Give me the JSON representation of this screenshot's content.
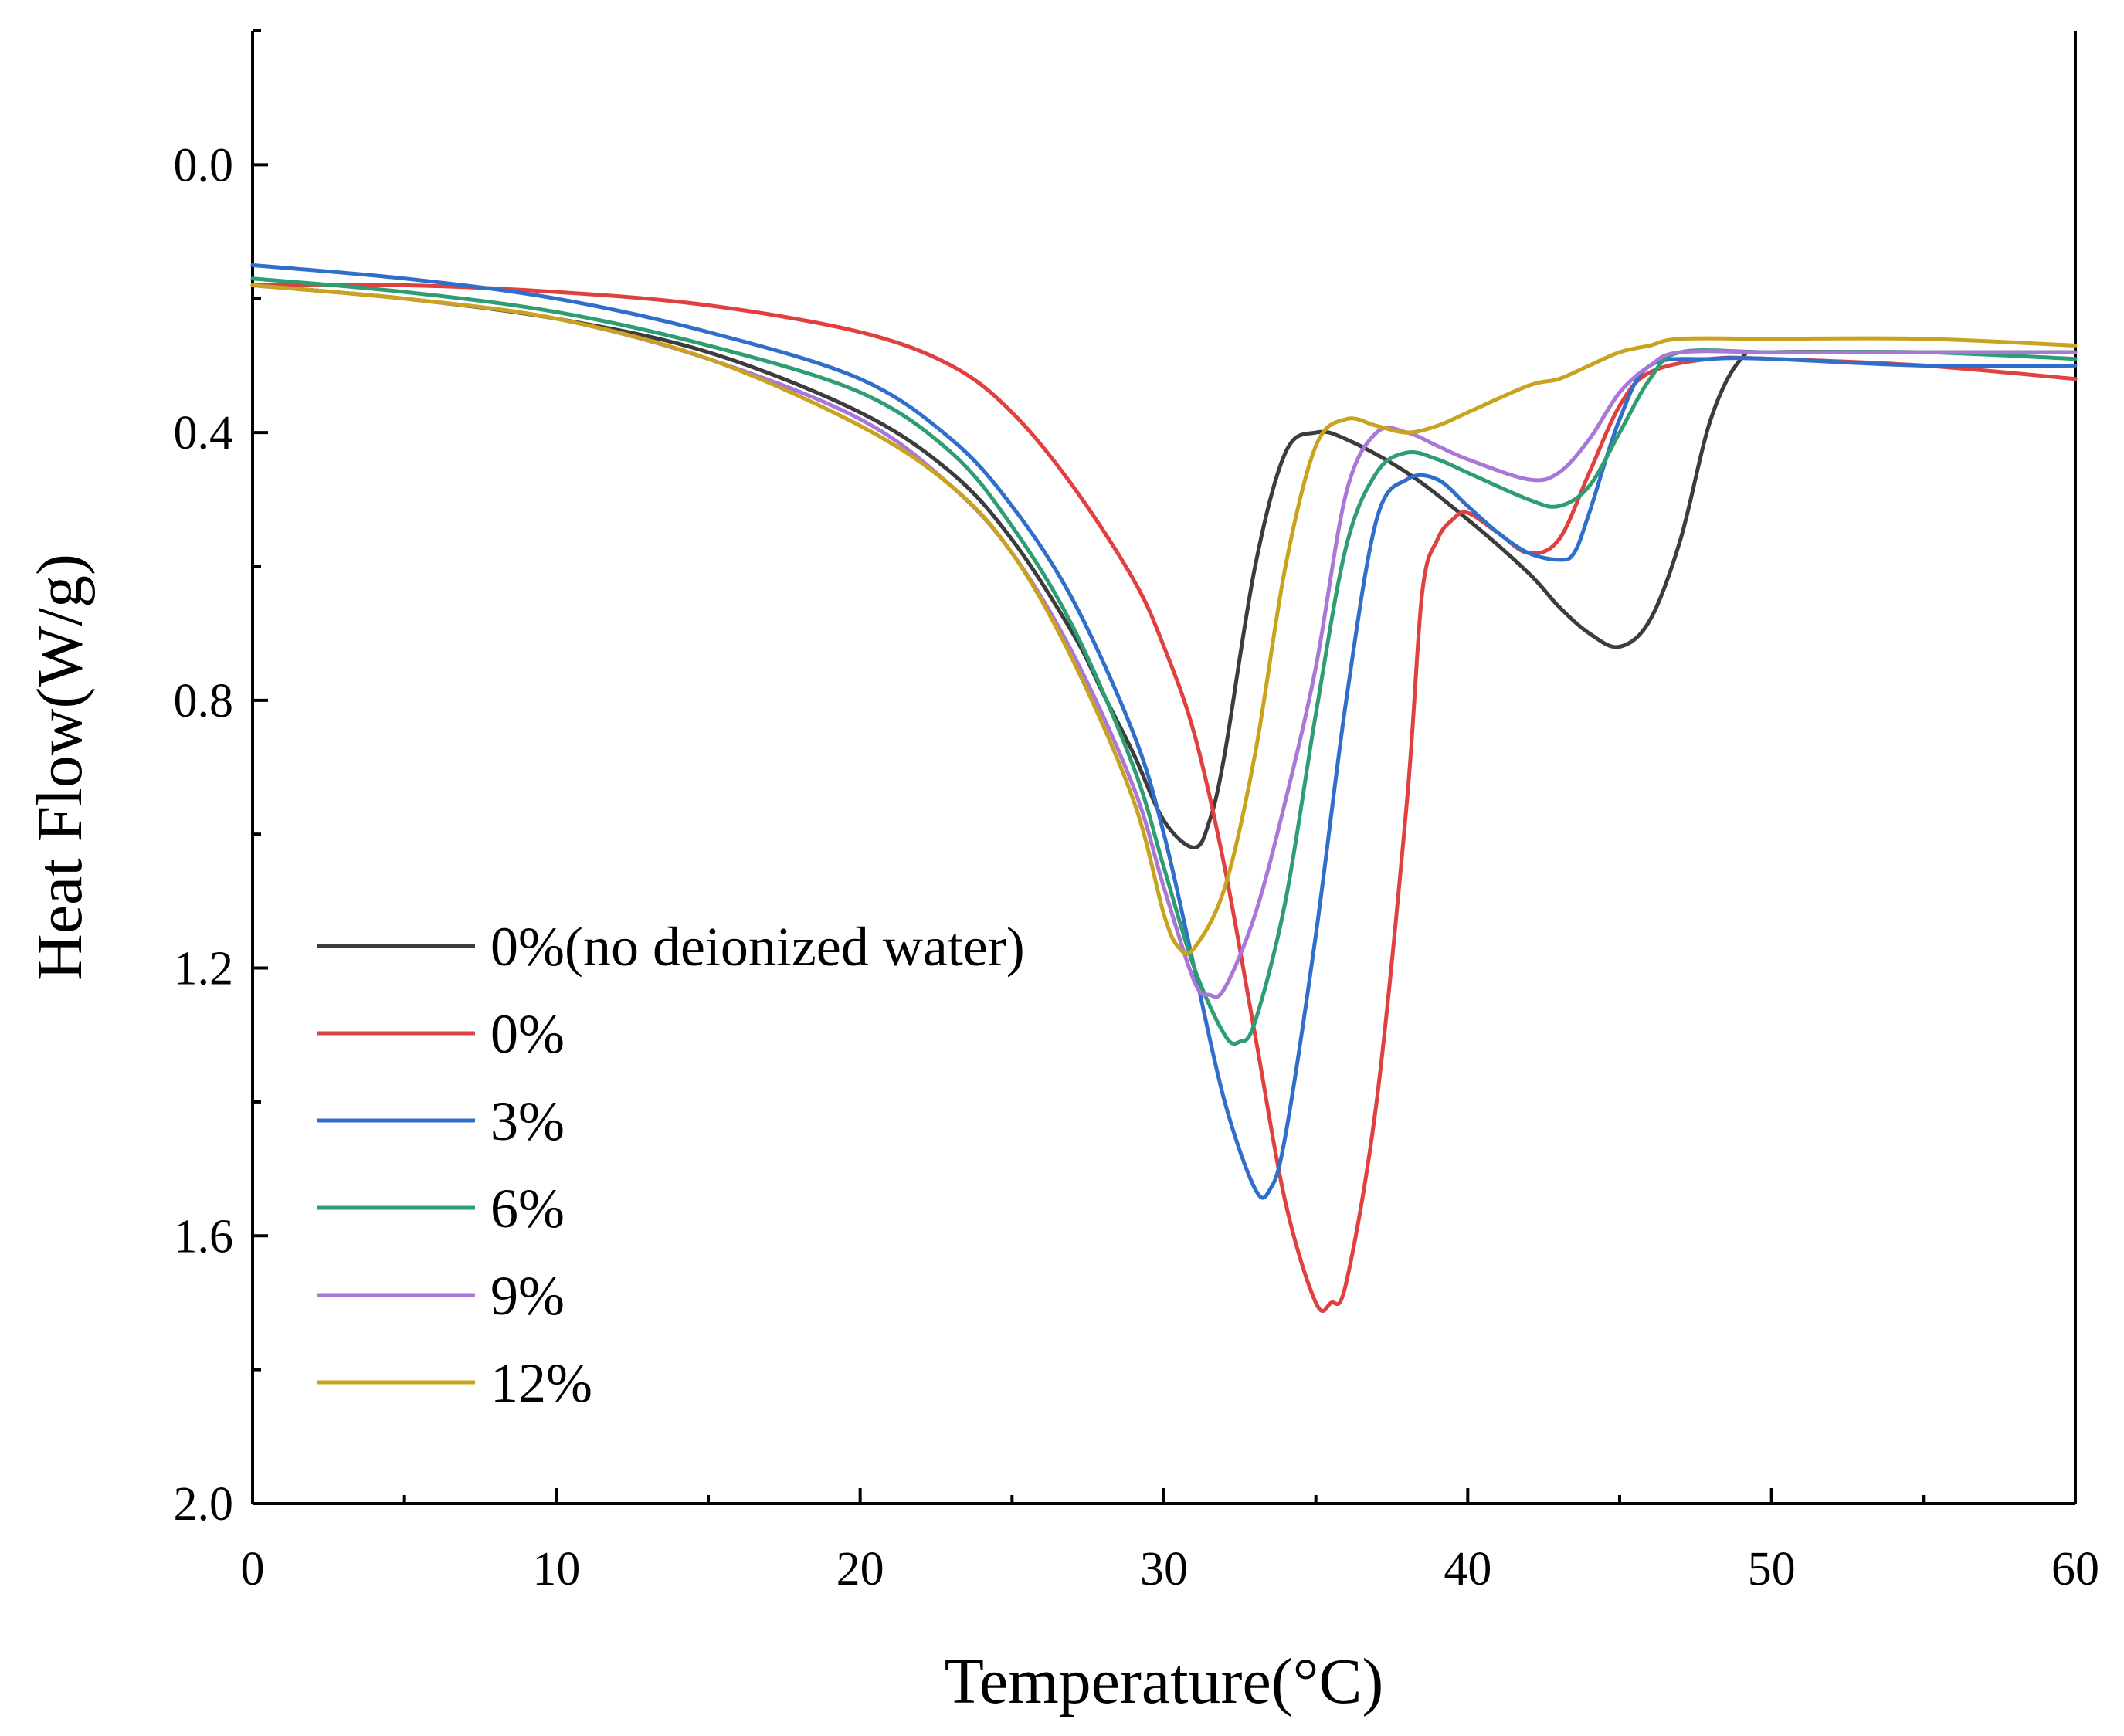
{
  "chart_data": {
    "type": "line",
    "title": "",
    "xlabel": "Temperature(°C)",
    "ylabel": "Heat Flow(W/g)",
    "xlim": [
      0,
      60
    ],
    "ylim": [
      -0.2,
      2.0
    ],
    "y_inverted": true,
    "x_ticks": [
      0,
      10,
      20,
      30,
      40,
      50,
      60
    ],
    "x_tick_labels": [
      "0",
      "10",
      "20",
      "30",
      "40",
      "50",
      "60"
    ],
    "y_ticks": [
      0.0,
      0.4,
      0.8,
      1.2,
      1.6,
      2.0
    ],
    "y_tick_labels": [
      "0.0",
      "0.4",
      "0.8",
      "1.2",
      "1.6",
      "2.0"
    ],
    "grid": false,
    "legend_position": "bottom-left",
    "series": [
      {
        "name": "0%(no deionized water)",
        "color": "#3c3c3c",
        "points": [
          [
            0,
            0.18
          ],
          [
            5,
            0.2
          ],
          [
            10,
            0.23
          ],
          [
            15,
            0.28
          ],
          [
            20,
            0.37
          ],
          [
            23,
            0.46
          ],
          [
            25,
            0.56
          ],
          [
            27,
            0.7
          ],
          [
            28,
            0.79
          ],
          [
            29,
            0.88
          ],
          [
            30,
            0.98
          ],
          [
            31,
            1.02
          ],
          [
            31.5,
            0.98
          ],
          [
            32,
            0.88
          ],
          [
            33,
            0.6
          ],
          [
            34,
            0.43
          ],
          [
            35,
            0.4
          ],
          [
            36,
            0.41
          ],
          [
            38,
            0.46
          ],
          [
            40,
            0.53
          ],
          [
            42,
            0.61
          ],
          [
            43,
            0.66
          ],
          [
            44,
            0.7
          ],
          [
            45,
            0.72
          ],
          [
            46,
            0.68
          ],
          [
            47,
            0.56
          ],
          [
            48,
            0.38
          ],
          [
            49,
            0.29
          ],
          [
            50,
            0.28
          ],
          [
            55,
            0.28
          ],
          [
            60,
            0.28
          ]
        ]
      },
      {
        "name": "0%",
        "color": "#e0403f",
        "points": [
          [
            0,
            0.18
          ],
          [
            5,
            0.18
          ],
          [
            10,
            0.19
          ],
          [
            15,
            0.21
          ],
          [
            20,
            0.25
          ],
          [
            23,
            0.3
          ],
          [
            25,
            0.37
          ],
          [
            27,
            0.48
          ],
          [
            29,
            0.62
          ],
          [
            30,
            0.72
          ],
          [
            31,
            0.85
          ],
          [
            32,
            1.05
          ],
          [
            33,
            1.3
          ],
          [
            34,
            1.55
          ],
          [
            35,
            1.7
          ],
          [
            35.5,
            1.7
          ],
          [
            36,
            1.67
          ],
          [
            37,
            1.4
          ],
          [
            38,
            0.95
          ],
          [
            38.5,
            0.64
          ],
          [
            39,
            0.56
          ],
          [
            39.5,
            0.53
          ],
          [
            40,
            0.52
          ],
          [
            41,
            0.55
          ],
          [
            42,
            0.58
          ],
          [
            43,
            0.56
          ],
          [
            44,
            0.46
          ],
          [
            45,
            0.36
          ],
          [
            46,
            0.31
          ],
          [
            48,
            0.29
          ],
          [
            50,
            0.29
          ],
          [
            55,
            0.3
          ],
          [
            60,
            0.32
          ]
        ]
      },
      {
        "name": "3%",
        "color": "#2f6ecb",
        "points": [
          [
            0,
            0.15
          ],
          [
            5,
            0.17
          ],
          [
            10,
            0.2
          ],
          [
            15,
            0.25
          ],
          [
            20,
            0.32
          ],
          [
            23,
            0.41
          ],
          [
            25,
            0.51
          ],
          [
            27,
            0.65
          ],
          [
            29,
            0.85
          ],
          [
            30,
            1.0
          ],
          [
            31,
            1.2
          ],
          [
            32,
            1.4
          ],
          [
            33,
            1.53
          ],
          [
            33.5,
            1.53
          ],
          [
            34,
            1.45
          ],
          [
            35,
            1.15
          ],
          [
            36,
            0.8
          ],
          [
            37,
            0.53
          ],
          [
            38,
            0.47
          ],
          [
            39,
            0.47
          ],
          [
            40,
            0.51
          ],
          [
            41,
            0.55
          ],
          [
            42,
            0.58
          ],
          [
            43,
            0.59
          ],
          [
            43.5,
            0.58
          ],
          [
            44,
            0.52
          ],
          [
            45,
            0.38
          ],
          [
            46,
            0.3
          ],
          [
            48,
            0.29
          ],
          [
            50,
            0.29
          ],
          [
            55,
            0.3
          ],
          [
            60,
            0.3
          ]
        ]
      },
      {
        "name": "6%",
        "color": "#2e9e72",
        "points": [
          [
            0,
            0.17
          ],
          [
            5,
            0.19
          ],
          [
            10,
            0.22
          ],
          [
            15,
            0.27
          ],
          [
            20,
            0.34
          ],
          [
            23,
            0.43
          ],
          [
            25,
            0.54
          ],
          [
            27,
            0.69
          ],
          [
            29,
            0.9
          ],
          [
            30,
            1.05
          ],
          [
            31,
            1.2
          ],
          [
            32,
            1.3
          ],
          [
            32.5,
            1.31
          ],
          [
            33,
            1.28
          ],
          [
            34,
            1.1
          ],
          [
            35,
            0.82
          ],
          [
            36,
            0.57
          ],
          [
            37,
            0.46
          ],
          [
            38,
            0.43
          ],
          [
            39,
            0.44
          ],
          [
            40,
            0.46
          ],
          [
            42,
            0.5
          ],
          [
            43,
            0.51
          ],
          [
            44,
            0.48
          ],
          [
            45,
            0.4
          ],
          [
            46,
            0.32
          ],
          [
            47,
            0.28
          ],
          [
            50,
            0.28
          ],
          [
            55,
            0.28
          ],
          [
            60,
            0.29
          ]
        ]
      },
      {
        "name": "9%",
        "color": "#a977d8",
        "points": [
          [
            0,
            0.18
          ],
          [
            5,
            0.2
          ],
          [
            10,
            0.23
          ],
          [
            15,
            0.29
          ],
          [
            20,
            0.38
          ],
          [
            23,
            0.48
          ],
          [
            25,
            0.58
          ],
          [
            27,
            0.73
          ],
          [
            29,
            0.93
          ],
          [
            30,
            1.08
          ],
          [
            31,
            1.22
          ],
          [
            31.5,
            1.24
          ],
          [
            32,
            1.23
          ],
          [
            33,
            1.12
          ],
          [
            34,
            0.95
          ],
          [
            35,
            0.75
          ],
          [
            36,
            0.49
          ],
          [
            37,
            0.4
          ],
          [
            38,
            0.4
          ],
          [
            39,
            0.42
          ],
          [
            40,
            0.44
          ],
          [
            42,
            0.47
          ],
          [
            43,
            0.46
          ],
          [
            44,
            0.41
          ],
          [
            45,
            0.34
          ],
          [
            46,
            0.3
          ],
          [
            47,
            0.28
          ],
          [
            50,
            0.28
          ],
          [
            55,
            0.28
          ],
          [
            60,
            0.28
          ]
        ]
      },
      {
        "name": "12%",
        "color": "#c9a21e",
        "points": [
          [
            0,
            0.18
          ],
          [
            5,
            0.2
          ],
          [
            10,
            0.23
          ],
          [
            15,
            0.29
          ],
          [
            20,
            0.39
          ],
          [
            23,
            0.48
          ],
          [
            25,
            0.58
          ],
          [
            27,
            0.74
          ],
          [
            29,
            0.95
          ],
          [
            30,
            1.12
          ],
          [
            30.5,
            1.17
          ],
          [
            31,
            1.17
          ],
          [
            32,
            1.08
          ],
          [
            33,
            0.88
          ],
          [
            34,
            0.6
          ],
          [
            35,
            0.42
          ],
          [
            36,
            0.38
          ],
          [
            37,
            0.39
          ],
          [
            38,
            0.4
          ],
          [
            39,
            0.39
          ],
          [
            40,
            0.37
          ],
          [
            42,
            0.33
          ],
          [
            43,
            0.32
          ],
          [
            44,
            0.3
          ],
          [
            45,
            0.28
          ],
          [
            46,
            0.27
          ],
          [
            47,
            0.26
          ],
          [
            50,
            0.26
          ],
          [
            55,
            0.26
          ],
          [
            60,
            0.27
          ]
        ]
      }
    ]
  }
}
